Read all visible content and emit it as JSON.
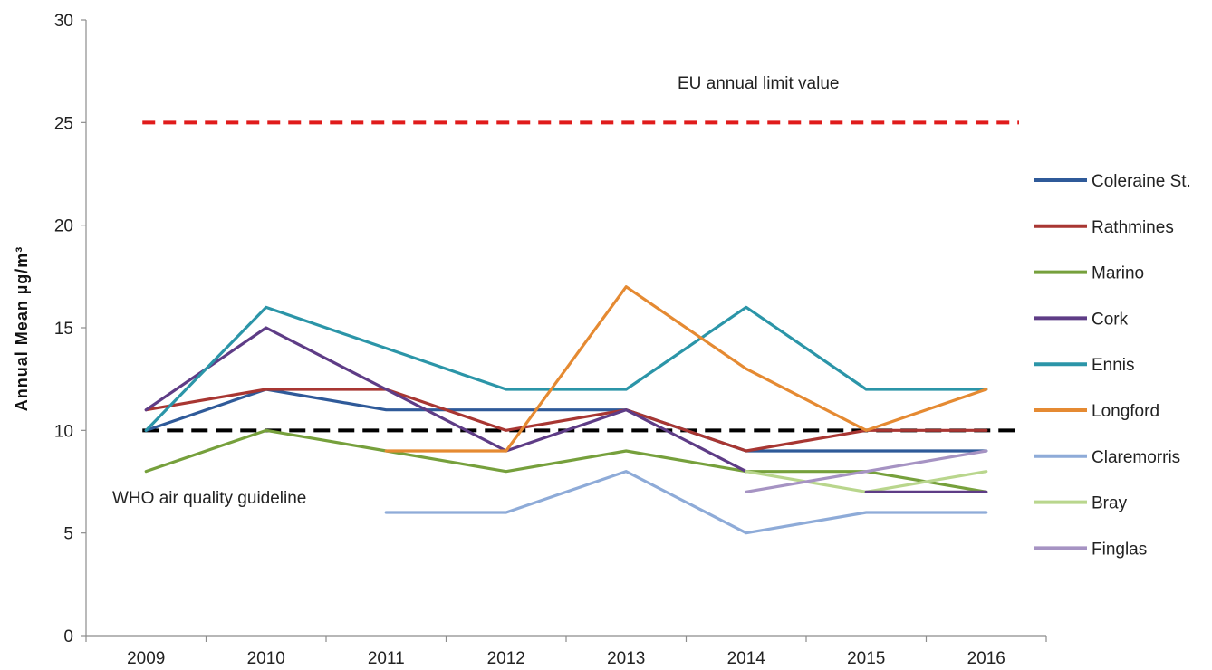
{
  "chart_data": {
    "type": "line",
    "title": "",
    "xlabel": "",
    "ylabel": "Annual Mean µg/m³",
    "categories": [
      "2009",
      "2010",
      "2011",
      "2012",
      "2013",
      "2014",
      "2015",
      "2016"
    ],
    "ylim": [
      0,
      30
    ],
    "yticks": [
      0,
      5,
      10,
      15,
      20,
      25,
      30
    ],
    "grid": false,
    "legend_position": "right",
    "series": [
      {
        "name": "Coleraine St.",
        "color": "#2f5a99",
        "values": [
          10,
          12,
          11,
          11,
          11,
          9,
          9,
          9
        ]
      },
      {
        "name": "Rathmines",
        "color": "#a83632",
        "values": [
          11,
          12,
          12,
          10,
          11,
          9,
          10,
          10
        ]
      },
      {
        "name": "Marino",
        "color": "#76a03c",
        "values": [
          8,
          10,
          9,
          8,
          9,
          8,
          8,
          7
        ]
      },
      {
        "name": "Cork",
        "color": "#5e3c86",
        "values": [
          11,
          15,
          12,
          9,
          11,
          8,
          null,
          null
        ]
      },
      {
        "name": "Ennis",
        "color": "#2b95a8",
        "values": [
          10,
          16,
          14,
          12,
          12,
          16,
          12,
          12
        ]
      },
      {
        "name": "Longford",
        "color": "#e58a32",
        "values": [
          null,
          null,
          9,
          9,
          17,
          13,
          10,
          12
        ]
      },
      {
        "name": "Claremorris",
        "color": "#8eabd8",
        "values": [
          null,
          null,
          6,
          6,
          8,
          5,
          6,
          6
        ]
      },
      {
        "name": "Bray",
        "color": "#b9d68d",
        "values": [
          null,
          null,
          null,
          null,
          null,
          8,
          7,
          8
        ]
      },
      {
        "name": "Finglas",
        "color": "#a693c3",
        "values": [
          null,
          null,
          null,
          null,
          null,
          7,
          8,
          9
        ]
      }
    ],
    "extra_segments": [
      {
        "series": "Cork",
        "color": "#5e3c86",
        "x": [
          "2015",
          "2016"
        ],
        "values": [
          7,
          7
        ]
      }
    ],
    "reference_lines": [
      {
        "name": "EU annual limit value",
        "value": 25,
        "color": "#e01b1b",
        "style": "dashed"
      },
      {
        "name": "WHO air quality guideline",
        "value": 10,
        "color": "#000000",
        "style": "dashed"
      }
    ]
  }
}
